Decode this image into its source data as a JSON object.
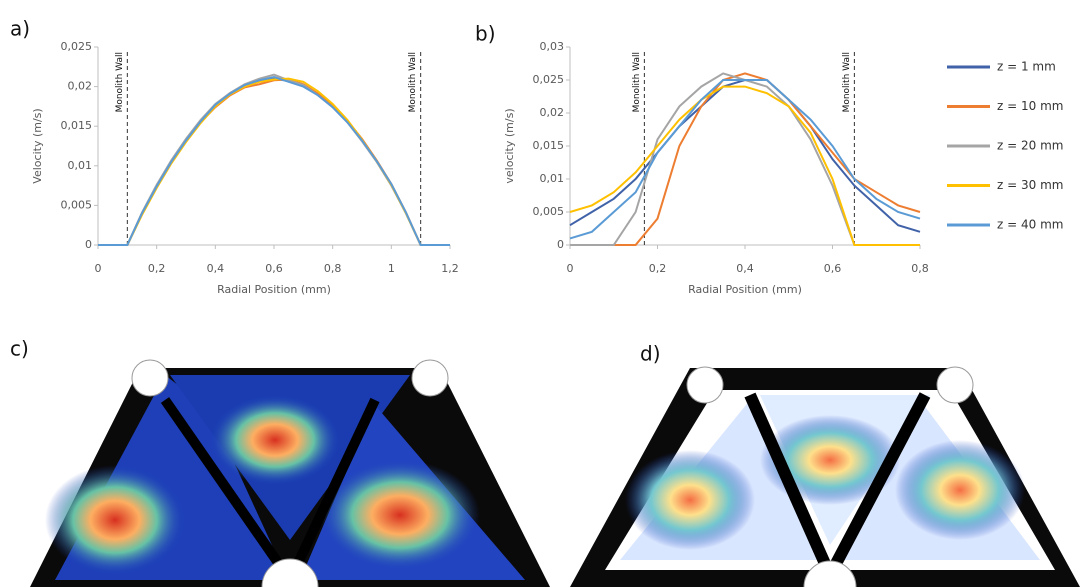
{
  "chart_data": [
    {
      "type": "line",
      "panel_label": "a)",
      "x_label": "Radial Position (mm)",
      "y_label": "Velocity (m/s)",
      "x": [
        0,
        0.1,
        0.15,
        0.2,
        0.25,
        0.3,
        0.35,
        0.4,
        0.45,
        0.5,
        0.55,
        0.6,
        0.65,
        0.7,
        0.75,
        0.8,
        0.85,
        0.9,
        0.95,
        1.0,
        1.05,
        1.1,
        1.2
      ],
      "series": [
        {
          "color": "#4062a8",
          "values": [
            0,
            0,
            0.004,
            0.0075,
            0.0106,
            0.0133,
            0.0157,
            0.0176,
            0.019,
            0.0201,
            0.0207,
            0.021,
            0.0207,
            0.0201,
            0.019,
            0.0175,
            0.0156,
            0.0132,
            0.0106,
            0.0076,
            0.004,
            0,
            0
          ]
        },
        {
          "color": "#ed7d31",
          "values": [
            0,
            0,
            0.0039,
            0.0073,
            0.0104,
            0.0131,
            0.0155,
            0.0174,
            0.0189,
            0.0199,
            0.0203,
            0.0208,
            0.0209,
            0.0203,
            0.0191,
            0.0176,
            0.0157,
            0.0134,
            0.0107,
            0.0077,
            0.0041,
            0,
            0
          ]
        },
        {
          "color": "#a5a5a5",
          "values": [
            0,
            0,
            0.0041,
            0.0076,
            0.0107,
            0.0134,
            0.0158,
            0.0178,
            0.0192,
            0.0203,
            0.021,
            0.0215,
            0.0208,
            0.0202,
            0.0189,
            0.0174,
            0.0155,
            0.0131,
            0.0105,
            0.0075,
            0.004,
            0,
            0
          ]
        },
        {
          "color": "#ffc000",
          "values": [
            0,
            0,
            0.0038,
            0.0072,
            0.0103,
            0.013,
            0.0154,
            0.0175,
            0.019,
            0.02,
            0.0206,
            0.0209,
            0.021,
            0.0206,
            0.0194,
            0.0178,
            0.0158,
            0.0133,
            0.0106,
            0.0076,
            0.004,
            0,
            0
          ]
        },
        {
          "color": "#5b9bd5",
          "values": [
            0,
            0,
            0.004,
            0.0074,
            0.0105,
            0.0132,
            0.0156,
            0.0177,
            0.0191,
            0.0202,
            0.0208,
            0.0212,
            0.0206,
            0.02,
            0.0189,
            0.0174,
            0.0155,
            0.0132,
            0.0106,
            0.0077,
            0.0041,
            0,
            0
          ]
        }
      ],
      "annotations": [
        {
          "text": "Monolith Wall",
          "x": 0.1
        },
        {
          "text": "Monolith Wall",
          "x": 1.1
        }
      ],
      "xlim": [
        0,
        1.2
      ],
      "ylim": [
        0,
        0.025
      ],
      "xticks": [
        0,
        {
          "value": 0.2,
          "label": "0,2"
        },
        {
          "value": 0.4,
          "label": "0,4"
        },
        {
          "value": 0.6,
          "label": "0,6"
        },
        {
          "value": 0.8,
          "label": "0,8"
        },
        1,
        {
          "value": 1.2,
          "label": "1,2"
        }
      ],
      "yticks": [
        0,
        {
          "value": 0.005,
          "label": "0,005"
        },
        {
          "value": 0.01,
          "label": "0,01"
        },
        {
          "value": 0.015,
          "label": "0,015"
        },
        {
          "value": 0.02,
          "label": "0,02"
        },
        {
          "value": 0.025,
          "label": "0,025"
        }
      ]
    },
    {
      "type": "line",
      "panel_label": "b)",
      "x_label": "Radial Position (mm)",
      "y_label": "velocity (m/s)",
      "x": [
        0,
        0.05,
        0.1,
        0.15,
        0.2,
        0.25,
        0.3,
        0.35,
        0.4,
        0.45,
        0.5,
        0.55,
        0.6,
        0.65,
        0.7,
        0.75,
        0.8
      ],
      "series": [
        {
          "name": "z = 1 mm",
          "color": "#4062a8",
          "values": [
            0.003,
            0.005,
            0.007,
            0.01,
            0.014,
            0.018,
            0.021,
            0.024,
            0.025,
            0.025,
            0.022,
            0.018,
            0.013,
            0.009,
            0.006,
            0.003,
            0.002
          ]
        },
        {
          "name": "z = 10 mm",
          "color": "#ed7d31",
          "values": [
            0,
            0,
            0,
            0,
            0.004,
            0.015,
            0.021,
            0.025,
            0.026,
            0.025,
            0.022,
            0.018,
            0.014,
            0.01,
            0.008,
            0.006,
            0.005
          ]
        },
        {
          "name": "z = 20 mm",
          "color": "#a5a5a5",
          "values": [
            0,
            0,
            0,
            0.005,
            0.016,
            0.021,
            0.024,
            0.026,
            0.025,
            0.024,
            0.021,
            0.016,
            0.009,
            0,
            0,
            0,
            0
          ]
        },
        {
          "name": "z = 30 mm",
          "color": "#ffc000",
          "values": [
            0.005,
            0.006,
            0.008,
            0.011,
            0.015,
            0.019,
            0.022,
            0.024,
            0.024,
            0.023,
            0.021,
            0.017,
            0.01,
            0,
            0,
            0,
            0
          ]
        },
        {
          "name": "z = 40 mm",
          "color": "#5b9bd5",
          "values": [
            0.001,
            0.002,
            0.005,
            0.008,
            0.014,
            0.018,
            0.022,
            0.025,
            0.025,
            0.025,
            0.022,
            0.019,
            0.015,
            0.01,
            0.007,
            0.005,
            0.004
          ]
        }
      ],
      "annotations": [
        {
          "text": "Monolith Wall",
          "x": 0.17
        },
        {
          "text": "Monolith Wall",
          "x": 0.65
        }
      ],
      "legend": "right",
      "xlim": [
        0,
        0.8
      ],
      "ylim": [
        0,
        0.03
      ],
      "xticks": [
        0,
        {
          "value": 0.2,
          "label": "0,2"
        },
        {
          "value": 0.4,
          "label": "0,4"
        },
        {
          "value": 0.6,
          "label": "0,6"
        },
        {
          "value": 0.8,
          "label": "0,8"
        }
      ],
      "yticks": [
        0,
        {
          "value": 0.005,
          "label": "0,005"
        },
        {
          "value": 0.01,
          "label": "0,01"
        },
        {
          "value": 0.015,
          "label": "0,015"
        },
        {
          "value": 0.02,
          "label": "0,02"
        },
        {
          "value": 0.025,
          "label": "0,025"
        },
        {
          "value": 0.03,
          "label": "0,03"
        }
      ]
    }
  ],
  "image_panels": [
    {
      "label": "c)"
    },
    {
      "label": "d)"
    }
  ]
}
